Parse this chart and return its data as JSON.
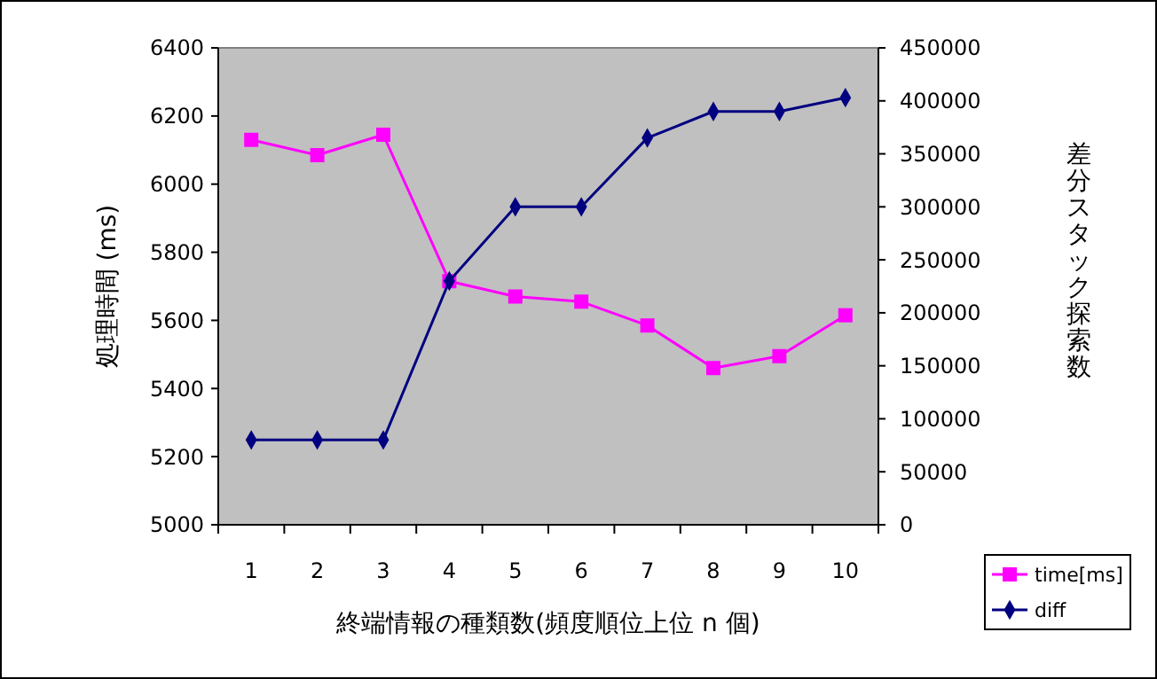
{
  "chart_data": {
    "type": "line",
    "xlabel": "終端情報の種類数(頻度順位上位 n 個)",
    "ylabel": "処理時間 (ms)",
    "y2label": "差分スタック探索数",
    "categories": [
      "1",
      "2",
      "3",
      "4",
      "5",
      "6",
      "7",
      "8",
      "9",
      "10"
    ],
    "series": [
      {
        "name": "time[ms]",
        "color": "#ff00ff",
        "marker": "square",
        "values": [
          6130,
          6085,
          6145,
          5715,
          5670,
          5655,
          5585,
          5460,
          5495,
          5615
        ]
      },
      {
        "name": "diff",
        "color": "#000080",
        "marker": "diamond",
        "axis": "y2",
        "values": [
          80000,
          80000,
          80000,
          230000,
          300000,
          300000,
          365000,
          390000,
          390000,
          403000
        ]
      }
    ],
    "ylim": [
      5000,
      6400
    ],
    "yticks": [
      5000,
      5200,
      5400,
      5600,
      5800,
      6000,
      6200,
      6400
    ],
    "y2lim": [
      0,
      450000
    ],
    "y2ticks": [
      0,
      50000,
      100000,
      150000,
      200000,
      250000,
      300000,
      350000,
      400000,
      450000
    ],
    "grid": false,
    "legend": "bottom right"
  }
}
